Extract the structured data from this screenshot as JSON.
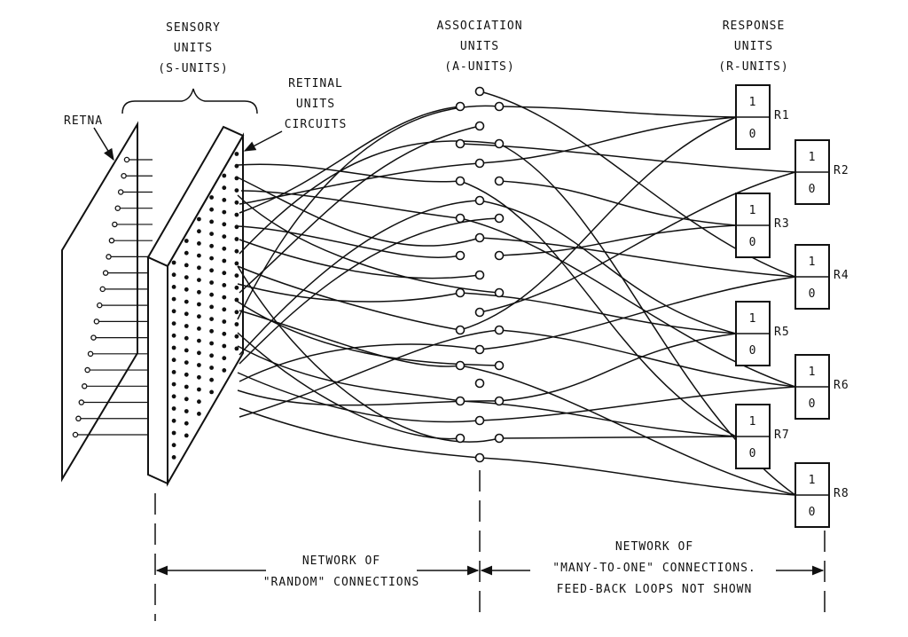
{
  "labels": {
    "sensory_units": [
      "SENSORY",
      "UNITS",
      "(S-UNITS)"
    ],
    "retina": "RETNA",
    "retinal_units_circuits": [
      "RETINAL",
      "UNITS",
      "CIRCUITS"
    ],
    "association_units": [
      "ASSOCIATION",
      "UNITS",
      "(A-UNITS)"
    ],
    "response_units": [
      "RESPONSE",
      "UNITS",
      "(R-UNITS)"
    ],
    "random_network": [
      "NETWORK OF",
      "\"RANDOM\" CONNECTIONS"
    ],
    "many_to_one_network": [
      "NETWORK OF",
      "\"MANY-TO-ONE\" CONNECTIONS.",
      "FEED-BACK LOOPS NOT SHOWN"
    ]
  },
  "response_units": [
    {
      "name": "R1",
      "on": "1",
      "off": "0"
    },
    {
      "name": "R2",
      "on": "1",
      "off": "0"
    },
    {
      "name": "R3",
      "on": "1",
      "off": "0"
    },
    {
      "name": "R4",
      "on": "1",
      "off": "0"
    },
    {
      "name": "R5",
      "on": "1",
      "off": "0"
    },
    {
      "name": "R6",
      "on": "1",
      "off": "0"
    },
    {
      "name": "R7",
      "on": "1",
      "off": "0"
    },
    {
      "name": "R8",
      "on": "1",
      "off": "0"
    }
  ],
  "colors": {
    "ink": "#111111",
    "paper": "#ffffff"
  }
}
